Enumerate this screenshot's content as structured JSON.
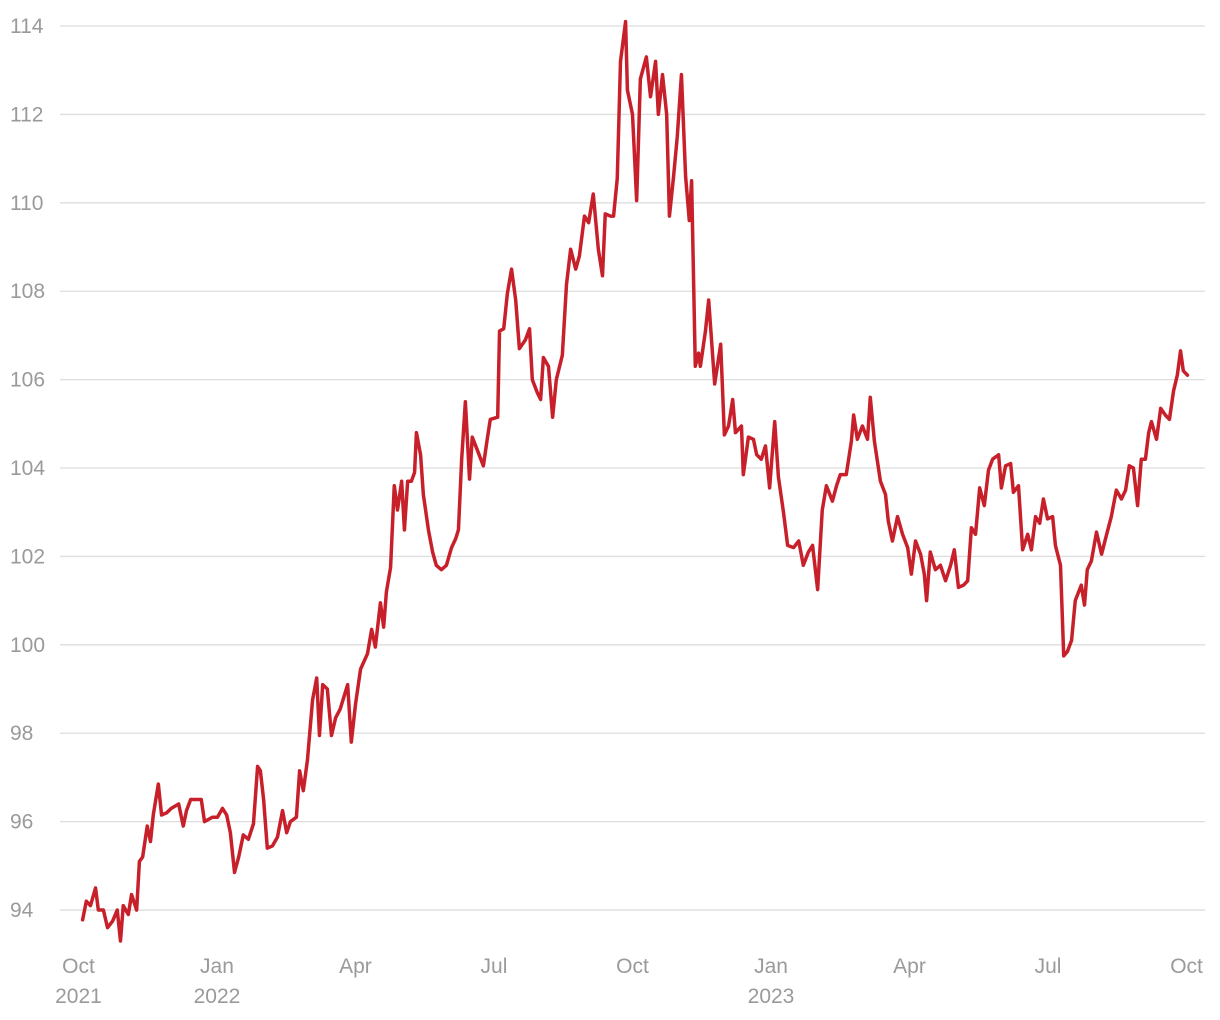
{
  "chart_data": {
    "type": "line",
    "series": [
      {
        "color": "#c8202a",
        "x": [
          0.09,
          0.17,
          0.26,
          0.37,
          0.43,
          0.54,
          0.63,
          0.74,
          0.84,
          0.91,
          0.97,
          1.08,
          1.15,
          1.26,
          1.32,
          1.39,
          1.49,
          1.56,
          1.62,
          1.73,
          1.8,
          1.91,
          2.01,
          2.17,
          2.27,
          2.34,
          2.43,
          2.53,
          2.66,
          2.73,
          2.9,
          3.01,
          3.12,
          3.21,
          3.29,
          3.38,
          3.47,
          3.57,
          3.68,
          3.79,
          3.88,
          3.94,
          4.01,
          4.09,
          4.2,
          4.31,
          4.42,
          4.51,
          4.59,
          4.72,
          4.79,
          4.87,
          4.96,
          5.07,
          5.16,
          5.22,
          5.29,
          5.39,
          5.48,
          5.57,
          5.67,
          5.83,
          5.91,
          6.0,
          6.11,
          6.26,
          6.35,
          6.43,
          6.54,
          6.61,
          6.67,
          6.76,
          6.84,
          6.91,
          7.0,
          7.06,
          7.13,
          7.21,
          7.28,
          7.32,
          7.41,
          7.47,
          7.58,
          7.67,
          7.75,
          7.86,
          7.97,
          8.08,
          8.17,
          8.23,
          8.3,
          8.38,
          8.47,
          8.53,
          8.66,
          8.77,
          8.86,
          8.92,
          9.08,
          9.12,
          9.21,
          9.29,
          9.38,
          9.47,
          9.55,
          9.68,
          9.77,
          9.83,
          9.94,
          10.01,
          10.07,
          10.18,
          10.27,
          10.35,
          10.48,
          10.57,
          10.66,
          10.77,
          10.85,
          10.96,
          11.05,
          11.15,
          11.26,
          11.35,
          11.41,
          11.52,
          11.59,
          11.67,
          11.74,
          11.85,
          11.89,
          12.0,
          12.09,
          12.17,
          12.3,
          12.39,
          12.5,
          12.56,
          12.65,
          12.74,
          12.8,
          12.89,
          12.97,
          13.06,
          13.15,
          13.23,
          13.28,
          13.36,
          13.43,
          13.47,
          13.58,
          13.65,
          13.78,
          13.91,
          13.99,
          14.08,
          14.17,
          14.23,
          14.36,
          14.4,
          14.51,
          14.62,
          14.69,
          14.79,
          14.88,
          14.97,
          15.08,
          15.16,
          15.27,
          15.36,
          15.49,
          15.6,
          15.7,
          15.81,
          15.9,
          16.01,
          16.11,
          16.2,
          16.33,
          16.42,
          16.5,
          16.63,
          16.74,
          16.79,
          16.87,
          16.98,
          17.09,
          17.15,
          17.24,
          17.37,
          17.48,
          17.54,
          17.63,
          17.74,
          17.85,
          17.96,
          18.04,
          18.13,
          18.24,
          18.32,
          18.37,
          18.45,
          18.56,
          18.67,
          18.78,
          18.89,
          18.97,
          19.06,
          19.17,
          19.26,
          19.34,
          19.43,
          19.52,
          19.62,
          19.71,
          19.8,
          19.93,
          19.99,
          20.08,
          20.19,
          20.25,
          20.36,
          20.45,
          20.56,
          20.64,
          20.73,
          20.82,
          20.9,
          20.99,
          21.1,
          21.16,
          21.27,
          21.34,
          21.42,
          21.51,
          21.59,
          21.72,
          21.79,
          21.85,
          21.94,
          22.05,
          22.16,
          22.27,
          22.37,
          22.48,
          22.59,
          22.68,
          22.76,
          22.85,
          22.94,
          23.02,
          23.11,
          23.18,
          23.24,
          23.35,
          23.44,
          23.54,
          23.63,
          23.72,
          23.8,
          23.87,
          23.93,
          24.02
        ],
        "values": [
          93.78,
          94.2,
          94.1,
          94.5,
          94.0,
          94.0,
          93.6,
          93.75,
          94.0,
          93.3,
          94.1,
          93.9,
          94.35,
          94.0,
          95.1,
          95.2,
          95.9,
          95.55,
          96.15,
          96.85,
          96.15,
          96.2,
          96.3,
          96.4,
          95.9,
          96.25,
          96.5,
          96.5,
          96.5,
          96.0,
          96.1,
          96.1,
          96.3,
          96.15,
          95.75,
          94.85,
          95.2,
          95.7,
          95.6,
          95.95,
          97.25,
          97.15,
          96.5,
          95.4,
          95.45,
          95.65,
          96.25,
          95.75,
          96.0,
          96.1,
          97.15,
          96.7,
          97.4,
          98.75,
          99.25,
          97.95,
          99.1,
          99.0,
          97.95,
          98.35,
          98.55,
          99.1,
          97.8,
          98.65,
          99.45,
          99.8,
          100.35,
          99.95,
          100.95,
          100.4,
          101.2,
          101.75,
          103.6,
          103.05,
          103.7,
          102.6,
          103.7,
          103.7,
          103.9,
          104.8,
          104.3,
          103.4,
          102.6,
          102.1,
          101.8,
          101.7,
          101.8,
          102.2,
          102.4,
          102.6,
          104.2,
          105.5,
          103.75,
          104.7,
          104.35,
          104.05,
          104.7,
          105.1,
          105.15,
          107.1,
          107.15,
          107.95,
          108.5,
          107.8,
          106.7,
          106.9,
          107.15,
          106.0,
          105.7,
          105.55,
          106.5,
          106.3,
          105.15,
          106.0,
          106.55,
          108.15,
          108.95,
          108.5,
          108.8,
          109.7,
          109.55,
          110.2,
          108.95,
          108.35,
          109.75,
          109.7,
          109.7,
          110.55,
          113.2,
          114.1,
          112.55,
          112.0,
          110.05,
          112.8,
          113.3,
          112.4,
          113.2,
          112.0,
          112.9,
          112.0,
          109.7,
          110.6,
          111.5,
          112.9,
          110.6,
          109.6,
          110.5,
          106.3,
          106.6,
          106.3,
          107.1,
          107.8,
          105.9,
          106.8,
          104.75,
          104.95,
          105.55,
          104.8,
          104.95,
          103.85,
          104.7,
          104.65,
          104.3,
          104.2,
          104.5,
          103.55,
          105.05,
          103.8,
          103.0,
          102.25,
          102.2,
          102.35,
          101.8,
          102.1,
          102.25,
          101.25,
          103.05,
          103.6,
          103.25,
          103.6,
          103.85,
          103.85,
          104.6,
          105.2,
          104.65,
          104.95,
          104.65,
          105.6,
          104.6,
          103.7,
          103.4,
          102.8,
          102.35,
          102.9,
          102.5,
          102.2,
          101.6,
          102.35,
          102.05,
          101.6,
          101.0,
          102.1,
          101.7,
          101.8,
          101.45,
          101.8,
          102.15,
          101.3,
          101.35,
          101.45,
          102.65,
          102.5,
          103.55,
          103.15,
          103.95,
          104.2,
          104.3,
          103.55,
          104.05,
          104.1,
          103.45,
          103.6,
          102.15,
          102.5,
          102.15,
          102.9,
          102.75,
          103.3,
          102.85,
          102.9,
          102.25,
          101.8,
          99.75,
          99.85,
          100.1,
          101.0,
          101.35,
          100.9,
          101.7,
          101.9,
          102.55,
          102.05,
          102.5,
          102.9,
          103.5,
          103.3,
          103.5,
          104.05,
          104.0,
          103.15,
          104.2,
          104.2,
          104.8,
          105.05,
          104.65,
          105.35,
          105.2,
          105.1,
          105.75,
          106.1,
          106.65,
          106.2,
          106.1
        ]
      }
    ],
    "xlim": [
      -0.4,
      24.4
    ],
    "xticks": [
      {
        "value": 0,
        "label": "Oct 2021"
      },
      {
        "value": 3,
        "label": "Jan 2022"
      },
      {
        "value": 6,
        "label": "Apr"
      },
      {
        "value": 9,
        "label": "Jul"
      },
      {
        "value": 12,
        "label": "Oct"
      },
      {
        "value": 15,
        "label": "Jan 2023"
      },
      {
        "value": 18,
        "label": "Apr"
      },
      {
        "value": 21,
        "label": "Jul"
      },
      {
        "value": 24,
        "label": "Oct"
      }
    ],
    "ylim": [
      93.2,
      114.1
    ],
    "yticks": [
      94,
      96,
      98,
      100,
      102,
      104,
      106,
      108,
      110,
      112,
      114
    ],
    "grid": true
  }
}
